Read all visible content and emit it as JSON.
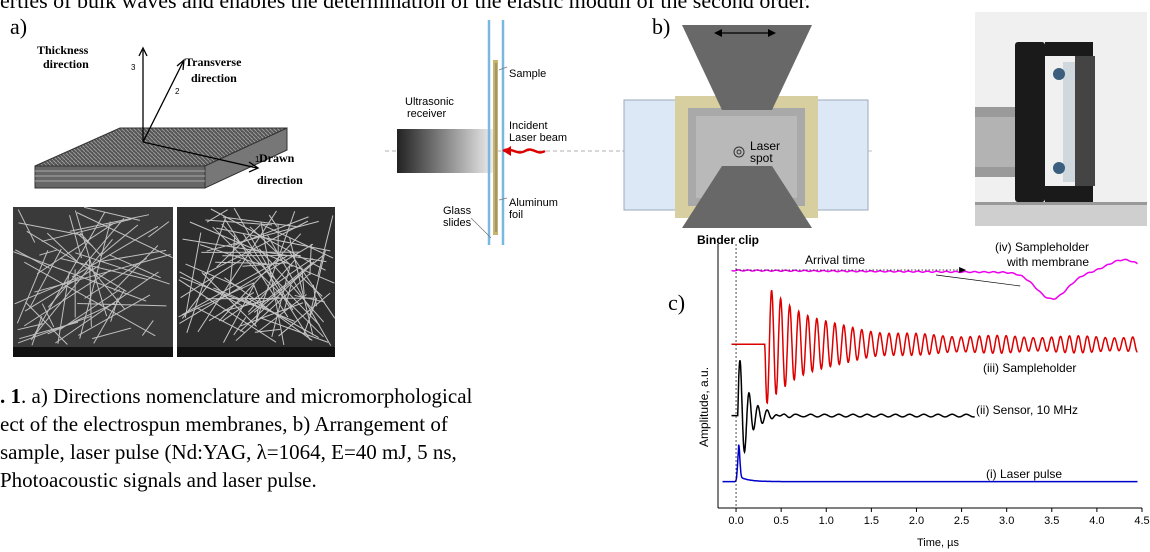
{
  "top_text": "erties of bulk waves and enables the determination of the elastic moduli of the second order.",
  "panels": {
    "a": "a)",
    "b": "b)",
    "c": "c)"
  },
  "diagram_a": {
    "axis_thickness_line1": "Thickness",
    "axis_thickness_line2": "direction",
    "axis_transverse_line1": "Transverse",
    "axis_transverse_line2": "direction",
    "axis_drawn_line1": "Drawn",
    "axis_drawn_line2": "direction",
    "axis_num_3": "3",
    "axis_num_2": "2",
    "axis_num_1": "1"
  },
  "setup": {
    "sample": "Sample",
    "receiver_line1": "Ultrasonic",
    "receiver_line2": "receiver",
    "incident_line1": "Incident",
    "incident_line2": "Laser beam",
    "aluminum_line1": "Aluminum",
    "aluminum_line2": "foil",
    "glass_line1": "Glass",
    "glass_line2": "slides"
  },
  "panel_b": {
    "laser_line1": "Laser",
    "laser_line2": "spot",
    "binder_clip": "Binder clip"
  },
  "caption": {
    "label": ". 1",
    "line1": ". a) Directions nomenclature and micromorphological",
    "line2": "ect of the electrospun membranes, b) Arrangement of",
    "line3": "sample, laser pulse (Nd:YAG, λ=1064, E=40 mJ, 5 ns,",
    "line4": "Photoacoustic signals and laser pulse."
  },
  "chart_data": {
    "type": "line",
    "xlabel": "Time, µs",
    "ylabel": "Amplitude, a.u.",
    "xlim": [
      -0.2,
      4.5
    ],
    "x_ticks": [
      "0.0",
      "0.5",
      "1.0",
      "1.5",
      "2.0",
      "2.5",
      "3.0",
      "3.5",
      "4.0",
      "4.5"
    ],
    "x_tick_values": [
      0.0,
      0.5,
      1.0,
      1.5,
      2.0,
      2.5,
      3.0,
      3.5,
      4.0,
      4.5
    ],
    "annotations": {
      "arrival_time": "Arrival time",
      "arrival_time_x": 2.55
    },
    "series": [
      {
        "name": "(i) Laser pulse",
        "label_line1": "(i) Laser pulse",
        "label_line2": "",
        "color": "#0000cc",
        "offset": 0.1,
        "kind": "pulse",
        "peak_time": 0.03
      },
      {
        "name": "(ii) Sensor, 10 MHz",
        "label_line1": "(ii) Sensor, 10 MHz",
        "label_line2": "",
        "color": "#000000",
        "offset": 0.35,
        "kind": "ring",
        "start": 0.0,
        "end": 2.65
      },
      {
        "name": "(iii) Sampleholder",
        "label_line1": "(iii) Sampleholder",
        "label_line2": "",
        "color": "#dd0000",
        "offset": 0.62,
        "kind": "ring_long",
        "start": 0.32,
        "end": 4.45
      },
      {
        "name": "(iv) Sampleholder with membrane",
        "label_line1": "(iv) Sampleholder",
        "label_line2": "with membrane",
        "color": "#ee00ee",
        "offset": 0.9,
        "kind": "slow",
        "start": 0.0,
        "end": 4.45
      }
    ]
  }
}
